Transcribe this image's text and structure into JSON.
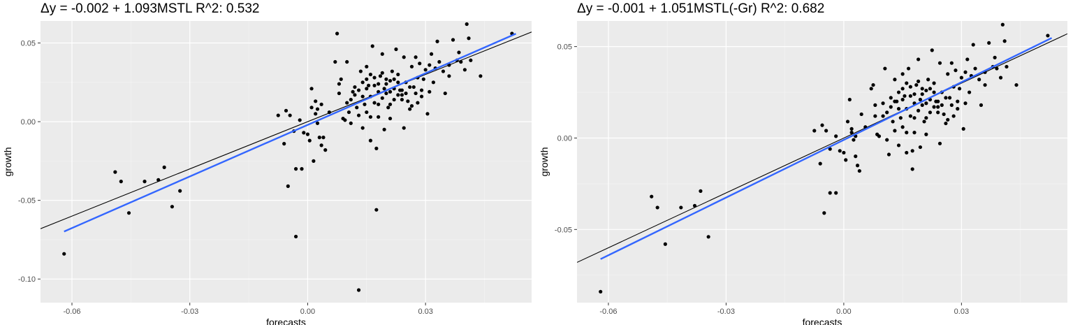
{
  "chart_data": [
    {
      "type": "scatter",
      "title": "Δy = -0.002 + 1.093MSTL R^2: 0.532",
      "xlabel": "forecasts",
      "ylabel": "growth",
      "xlim": [
        -0.068,
        0.057
      ],
      "ylim": [
        -0.115,
        0.064
      ],
      "xticks": [
        -0.06,
        -0.03,
        0.0,
        0.03
      ],
      "xtick_labels": [
        "-0.06",
        "-0.03",
        "0.00",
        "0.03"
      ],
      "yticks": [
        -0.1,
        -0.05,
        0.0,
        0.05
      ],
      "ytick_labels": [
        "-0.10",
        "-0.05",
        "0.00",
        "0.05"
      ],
      "grid": true,
      "background": "#ebebeb",
      "point_color": "#000000",
      "reference_line": {
        "intercept": 0.0,
        "slope": 1.0,
        "color": "#000000"
      },
      "fit_line": {
        "x": [
          -0.062,
          0.053
        ],
        "y": [
          -0.0698,
          0.0559
        ],
        "color": "#3366ff"
      },
      "points": [
        [
          -0.062,
          -0.084
        ],
        [
          -0.049,
          -0.032
        ],
        [
          -0.0475,
          -0.038
        ],
        [
          -0.0455,
          -0.058
        ],
        [
          -0.0415,
          -0.038
        ],
        [
          -0.038,
          -0.037
        ],
        [
          -0.0365,
          -0.029
        ],
        [
          -0.0345,
          -0.054
        ],
        [
          -0.0325,
          -0.044
        ],
        [
          -0.005,
          -0.041
        ],
        [
          -0.003,
          -0.073
        ],
        [
          -0.0075,
          0.004
        ],
        [
          -0.0055,
          0.007
        ],
        [
          -0.0045,
          0.004
        ],
        [
          -0.0035,
          -0.006
        ],
        [
          -0.006,
          -0.014
        ],
        [
          -0.002,
          0.001
        ],
        [
          -0.001,
          -0.007
        ],
        [
          0.0,
          -0.008
        ],
        [
          0.0005,
          -0.012
        ],
        [
          0.001,
          0.009
        ],
        [
          0.002,
          0.005
        ],
        [
          0.0025,
          -0.001
        ],
        [
          0.003,
          -0.01
        ],
        [
          0.0035,
          -0.015
        ],
        [
          -0.003,
          -0.03
        ],
        [
          -0.0015,
          -0.03
        ],
        [
          0.0015,
          -0.025
        ],
        [
          0.0025,
          0.008
        ],
        [
          0.0035,
          0.011
        ],
        [
          0.002,
          0.013
        ],
        [
          0.0045,
          -0.018
        ],
        [
          0.004,
          -0.01
        ],
        [
          0.001,
          0.021
        ],
        [
          0.0055,
          0.006
        ],
        [
          0.007,
          0.038
        ],
        [
          0.0075,
          0.056
        ],
        [
          0.008,
          0.024
        ],
        [
          0.0085,
          0.027
        ],
        [
          0.009,
          0.002
        ],
        [
          0.0095,
          0.001
        ],
        [
          0.01,
          0.038
        ],
        [
          0.0105,
          0.006
        ],
        [
          0.011,
          0.014
        ],
        [
          0.0115,
          0.019
        ],
        [
          0.012,
          0.022
        ],
        [
          0.0125,
          0.009
        ],
        [
          0.013,
          -0.107
        ],
        [
          0.0135,
          0.032
        ],
        [
          0.014,
          0.025
        ],
        [
          0.0145,
          0.011
        ],
        [
          0.015,
          0.035
        ],
        [
          0.0155,
          0.023
        ],
        [
          0.016,
          0.003
        ],
        [
          0.0165,
          0.048
        ],
        [
          0.017,
          0.028
        ],
        [
          0.0175,
          -0.056
        ],
        [
          0.018,
          0.011
        ],
        [
          0.0185,
          0.029
        ],
        [
          0.019,
          0.043
        ],
        [
          0.0195,
          0.021
        ],
        [
          0.02,
          0.018
        ],
        [
          0.0205,
          0.009
        ],
        [
          0.021,
          0.026
        ],
        [
          0.0215,
          0.032
        ],
        [
          0.022,
          0.014
        ],
        [
          0.0225,
          0.046
        ],
        [
          0.023,
          0.03
        ],
        [
          0.0235,
          0.02
        ],
        [
          0.024,
          0.017
        ],
        [
          0.0245,
          0.041
        ],
        [
          0.025,
          0.025
        ],
        [
          0.0255,
          0.013
        ],
        [
          0.026,
          0.008
        ],
        [
          0.0265,
          0.035
        ],
        [
          0.027,
          0.022
        ],
        [
          0.0275,
          0.018
        ],
        [
          0.028,
          0.028
        ],
        [
          0.0285,
          0.037
        ],
        [
          0.029,
          0.016
        ],
        [
          0.0295,
          0.027
        ],
        [
          0.03,
          0.033
        ],
        [
          0.0305,
          0.005
        ],
        [
          0.031,
          0.036
        ],
        [
          0.0315,
          0.043
        ],
        [
          0.032,
          0.025
        ],
        [
          0.0325,
          0.034
        ],
        [
          0.033,
          0.051
        ],
        [
          0.0345,
          0.032
        ],
        [
          0.035,
          0.018
        ],
        [
          0.036,
          0.036
        ],
        [
          0.037,
          0.052
        ],
        [
          0.038,
          0.039
        ],
        [
          0.039,
          0.038
        ],
        [
          0.04,
          0.033
        ],
        [
          0.0405,
          0.062
        ],
        [
          0.041,
          0.053
        ],
        [
          0.0415,
          0.039
        ],
        [
          0.044,
          0.029
        ],
        [
          0.052,
          0.056
        ],
        [
          0.015,
          0.021
        ],
        [
          0.016,
          0.016
        ],
        [
          0.017,
          0.023
        ],
        [
          0.018,
          0.019
        ],
        [
          0.019,
          0.015
        ],
        [
          0.02,
          0.024
        ],
        [
          0.021,
          0.019
        ],
        [
          0.022,
          0.021
        ],
        [
          0.023,
          0.025
        ],
        [
          0.024,
          0.02
        ],
        [
          0.025,
          0.018
        ],
        [
          0.026,
          0.022
        ],
        [
          0.012,
          0.017
        ],
        [
          0.013,
          0.02
        ],
        [
          0.014,
          0.016
        ],
        [
          0.015,
          0.027
        ],
        [
          0.016,
          0.03
        ],
        [
          0.017,
          0.012
        ],
        [
          0.018,
          0.024
        ],
        [
          0.019,
          0.031
        ],
        [
          0.02,
          0.027
        ],
        [
          0.021,
          0.011
        ],
        [
          0.022,
          0.027
        ],
        [
          0.023,
          0.017
        ],
        [
          0.024,
          0.014
        ],
        [
          0.011,
          -0.001
        ],
        [
          0.014,
          -0.004
        ],
        [
          0.016,
          -0.012
        ],
        [
          0.0175,
          -0.017
        ],
        [
          0.0195,
          -0.005
        ],
        [
          0.013,
          0.004
        ],
        [
          0.015,
          0.006
        ],
        [
          0.018,
          0.003
        ],
        [
          0.021,
          0.002
        ],
        [
          0.0245,
          -0.004
        ],
        [
          0.0265,
          0.01
        ],
        [
          0.028,
          0.012
        ],
        [
          0.029,
          0.02
        ],
        [
          0.031,
          0.019
        ],
        [
          0.0335,
          0.038
        ],
        [
          0.036,
          0.029
        ],
        [
          0.0385,
          0.044
        ],
        [
          0.01,
          0.012
        ],
        [
          0.008,
          0.018
        ],
        [
          0.0275,
          0.041
        ]
      ]
    },
    {
      "type": "scatter",
      "title": "Δy = -0.001 + 1.051MSTL(-Gr) R^2: 0.682",
      "xlabel": "forecasts",
      "ylabel": "growth",
      "xlim": [
        -0.068,
        0.057
      ],
      "ylim": [
        -0.09,
        0.064
      ],
      "xticks": [
        -0.06,
        -0.03,
        0.0,
        0.03
      ],
      "xtick_labels": [
        "-0.06",
        "-0.03",
        "0.00",
        "0.03"
      ],
      "yticks": [
        -0.05,
        0.0,
        0.05
      ],
      "ytick_labels": [
        "-0.05",
        "0.00",
        "0.05"
      ],
      "grid": true,
      "background": "#ebebeb",
      "point_color": "#000000",
      "reference_line": {
        "intercept": 0.0,
        "slope": 1.0,
        "color": "#000000"
      },
      "fit_line": {
        "x": [
          -0.062,
          0.053
        ],
        "y": [
          -0.0662,
          0.0547
        ],
        "color": "#3366ff"
      },
      "points": [
        [
          -0.062,
          -0.084
        ],
        [
          -0.049,
          -0.032
        ],
        [
          -0.0475,
          -0.038
        ],
        [
          -0.0455,
          -0.058
        ],
        [
          -0.0415,
          -0.038
        ],
        [
          -0.038,
          -0.037
        ],
        [
          -0.0365,
          -0.029
        ],
        [
          -0.0345,
          -0.054
        ],
        [
          -0.005,
          -0.041
        ],
        [
          -0.0035,
          -0.03
        ],
        [
          -0.002,
          -0.03
        ],
        [
          -0.0075,
          0.004
        ],
        [
          -0.0055,
          0.007
        ],
        [
          -0.0045,
          0.004
        ],
        [
          -0.0035,
          -0.006
        ],
        [
          -0.006,
          -0.014
        ],
        [
          -0.002,
          0.001
        ],
        [
          -0.001,
          -0.007
        ],
        [
          0.0,
          -0.008
        ],
        [
          0.0005,
          -0.012
        ],
        [
          0.001,
          0.009
        ],
        [
          0.002,
          0.005
        ],
        [
          0.0025,
          -0.001
        ],
        [
          0.003,
          -0.01
        ],
        [
          0.0035,
          -0.015
        ],
        [
          0.0015,
          0.021
        ],
        [
          0.0045,
          0.013
        ],
        [
          0.004,
          -0.018
        ],
        [
          0.003,
          0.001
        ],
        [
          0.002,
          0.003
        ],
        [
          0.0055,
          0.006
        ],
        [
          0.007,
          0.027
        ],
        [
          0.0075,
          0.029
        ],
        [
          0.008,
          0.012
        ],
        [
          0.0085,
          0.002
        ],
        [
          0.009,
          0.001
        ],
        [
          0.01,
          0.019
        ],
        [
          0.0105,
          0.038
        ],
        [
          0.011,
          0.014
        ],
        [
          0.0115,
          -0.009
        ],
        [
          0.012,
          0.022
        ],
        [
          0.0125,
          0.009
        ],
        [
          0.013,
          0.032
        ],
        [
          0.0135,
          0.02
        ],
        [
          0.014,
          0.025
        ],
        [
          0.0145,
          0.011
        ],
        [
          0.015,
          0.035
        ],
        [
          0.0155,
          0.023
        ],
        [
          0.016,
          0.003
        ],
        [
          0.0165,
          0.038
        ],
        [
          0.017,
          0.028
        ],
        [
          0.0175,
          -0.017
        ],
        [
          0.018,
          0.011
        ],
        [
          0.0185,
          0.029
        ],
        [
          0.019,
          0.043
        ],
        [
          0.0195,
          0.021
        ],
        [
          0.02,
          0.018
        ],
        [
          0.0205,
          0.009
        ],
        [
          0.021,
          0.026
        ],
        [
          0.0215,
          0.032
        ],
        [
          0.022,
          0.014
        ],
        [
          0.0225,
          0.048
        ],
        [
          0.023,
          0.03
        ],
        [
          0.0235,
          0.02
        ],
        [
          0.024,
          0.017
        ],
        [
          0.0245,
          0.041
        ],
        [
          0.025,
          0.025
        ],
        [
          0.0255,
          0.013
        ],
        [
          0.026,
          0.008
        ],
        [
          0.0265,
          0.035
        ],
        [
          0.027,
          0.022
        ],
        [
          0.0275,
          0.018
        ],
        [
          0.028,
          0.028
        ],
        [
          0.0285,
          0.037
        ],
        [
          0.029,
          0.016
        ],
        [
          0.0295,
          0.027
        ],
        [
          0.03,
          0.033
        ],
        [
          0.0305,
          0.005
        ],
        [
          0.031,
          0.036
        ],
        [
          0.0315,
          0.043
        ],
        [
          0.032,
          0.025
        ],
        [
          0.0325,
          0.034
        ],
        [
          0.033,
          0.051
        ],
        [
          0.0345,
          0.032
        ],
        [
          0.035,
          0.018
        ],
        [
          0.036,
          0.036
        ],
        [
          0.037,
          0.052
        ],
        [
          0.038,
          0.039
        ],
        [
          0.039,
          0.038
        ],
        [
          0.04,
          0.033
        ],
        [
          0.0405,
          0.062
        ],
        [
          0.041,
          0.053
        ],
        [
          0.0415,
          0.039
        ],
        [
          0.044,
          0.029
        ],
        [
          0.052,
          0.056
        ],
        [
          0.015,
          0.021
        ],
        [
          0.016,
          0.016
        ],
        [
          0.017,
          0.023
        ],
        [
          0.018,
          0.019
        ],
        [
          0.019,
          0.015
        ],
        [
          0.02,
          0.024
        ],
        [
          0.021,
          0.019
        ],
        [
          0.022,
          0.021
        ],
        [
          0.023,
          0.025
        ],
        [
          0.024,
          0.02
        ],
        [
          0.025,
          0.018
        ],
        [
          0.026,
          0.022
        ],
        [
          0.012,
          0.017
        ],
        [
          0.013,
          0.02
        ],
        [
          0.014,
          0.016
        ],
        [
          0.015,
          0.027
        ],
        [
          0.016,
          0.03
        ],
        [
          0.017,
          0.012
        ],
        [
          0.018,
          0.024
        ],
        [
          0.019,
          0.031
        ],
        [
          0.02,
          0.027
        ],
        [
          0.021,
          0.011
        ],
        [
          0.022,
          0.027
        ],
        [
          0.023,
          0.017
        ],
        [
          0.024,
          0.014
        ],
        [
          0.011,
          -0.001
        ],
        [
          0.014,
          -0.004
        ],
        [
          0.016,
          -0.008
        ],
        [
          0.0175,
          -0.007
        ],
        [
          0.0195,
          -0.005
        ],
        [
          0.013,
          0.004
        ],
        [
          0.015,
          0.006
        ],
        [
          0.018,
          0.003
        ],
        [
          0.021,
          0.002
        ],
        [
          0.0245,
          -0.003
        ],
        [
          0.0265,
          0.01
        ],
        [
          0.028,
          0.012
        ],
        [
          0.029,
          0.02
        ],
        [
          0.031,
          0.019
        ],
        [
          0.0335,
          0.038
        ],
        [
          0.036,
          0.029
        ],
        [
          0.0385,
          0.044
        ],
        [
          0.01,
          0.012
        ],
        [
          0.008,
          0.018
        ],
        [
          0.0275,
          0.041
        ]
      ]
    }
  ]
}
